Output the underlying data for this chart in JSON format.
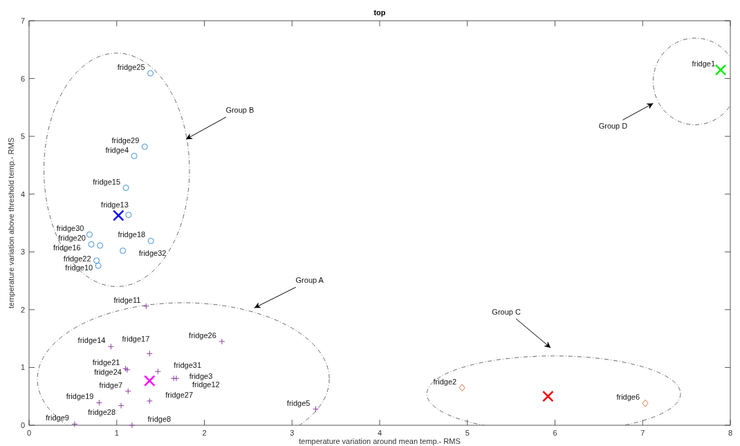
{
  "chart_data": {
    "type": "scatter",
    "title": "top",
    "xlabel": "temperature variation around mean temp.- RMS",
    "ylabel": "temperature variation above threshold temp.- RMS",
    "xlim": [
      0,
      8
    ],
    "xticks": [
      0,
      1,
      2,
      3,
      4,
      5,
      6,
      7,
      8
    ],
    "ylim": [
      0,
      7
    ],
    "yticks": [
      0,
      1,
      2,
      3,
      4,
      5,
      6,
      7
    ],
    "grid": false,
    "series": [
      {
        "color": "#3d8fd6",
        "marker": "circle",
        "x": [
          1.385,
          1.32,
          1.2,
          1.105,
          1.135,
          1.39,
          0.69,
          0.71,
          0.81,
          1.07,
          0.77,
          0.79
        ],
        "values": [
          6.09,
          4.82,
          4.66,
          4.11,
          3.64,
          3.19,
          3.3,
          3.13,
          3.11,
          3.02,
          2.85,
          2.76
        ]
      },
      {
        "color": "#8a3f9e",
        "marker": "cross",
        "x": [
          1.336,
          2.2,
          0.934,
          1.375,
          1.1,
          1.12,
          1.47,
          1.65,
          1.68,
          1.13,
          1.375,
          0.8,
          1.05,
          0.52,
          1.175,
          3.27
        ],
        "values": [
          2.06,
          1.45,
          1.36,
          1.24,
          0.98,
          0.96,
          0.93,
          0.81,
          0.81,
          0.59,
          0.42,
          0.39,
          0.34,
          0.02,
          0.0,
          0.28
        ]
      },
      {
        "color": "#e0724a",
        "marker": "diamond",
        "x": [
          4.94,
          7.03
        ],
        "values": [
          0.65,
          0.38
        ]
      },
      {
        "color": "#0000ff",
        "marker": "x",
        "x": [
          1.02
        ],
        "values": [
          3.63
        ]
      },
      {
        "color": "#ff00ff",
        "marker": "x",
        "x": [
          1.375
        ],
        "values": [
          0.77
        ]
      },
      {
        "color": "#ff0000",
        "marker": "x",
        "x": [
          5.92
        ],
        "values": [
          0.5
        ]
      },
      {
        "color": "#00ee00",
        "marker": "x",
        "x": [
          7.89
        ],
        "values": [
          6.15
        ]
      }
    ],
    "annotations": [
      {
        "text": "fridge25",
        "x": 1.385,
        "y": 6.09
      },
      {
        "text": "fridge29",
        "x": 1.32,
        "y": 4.82
      },
      {
        "text": "fridge4",
        "x": 1.2,
        "y": 4.66
      },
      {
        "text": "fridge15",
        "x": 1.105,
        "y": 4.11
      },
      {
        "text": "fridge13",
        "x": 1.135,
        "y": 3.64
      },
      {
        "text": "fridge18",
        "x": 1.39,
        "y": 3.19
      },
      {
        "text": "fridge30",
        "x": 0.69,
        "y": 3.3
      },
      {
        "text": "fridge20",
        "x": 0.71,
        "y": 3.13
      },
      {
        "text": "fridge16",
        "x": 0.81,
        "y": 3.11
      },
      {
        "text": "fridge32",
        "x": 1.07,
        "y": 3.02
      },
      {
        "text": "fridge22",
        "x": 0.77,
        "y": 2.85
      },
      {
        "text": "fridge10",
        "x": 0.79,
        "y": 2.76
      },
      {
        "text": "fridge11",
        "x": 1.336,
        "y": 2.06
      },
      {
        "text": "fridge26",
        "x": 2.2,
        "y": 1.45
      },
      {
        "text": "fridge14",
        "x": 0.934,
        "y": 1.36
      },
      {
        "text": "fridge17",
        "x": 1.375,
        "y": 1.24
      },
      {
        "text": "fridge21",
        "x": 1.1,
        "y": 0.98
      },
      {
        "text": "fridge24",
        "x": 1.12,
        "y": 0.96
      },
      {
        "text": "fridge31",
        "x": 1.47,
        "y": 0.93
      },
      {
        "text": "fridge3",
        "x": 1.65,
        "y": 0.81
      },
      {
        "text": "fridge12",
        "x": 1.68,
        "y": 0.81
      },
      {
        "text": "fridge7",
        "x": 1.13,
        "y": 0.59
      },
      {
        "text": "fridge27",
        "x": 1.375,
        "y": 0.42
      },
      {
        "text": "fridge19",
        "x": 0.8,
        "y": 0.39
      },
      {
        "text": "fridge28",
        "x": 1.05,
        "y": 0.34
      },
      {
        "text": "fridge9",
        "x": 0.52,
        "y": 0.02
      },
      {
        "text": "fridge8",
        "x": 1.175,
        "y": 0.0
      },
      {
        "text": "fridge5",
        "x": 3.27,
        "y": 0.28
      },
      {
        "text": "fridge2",
        "x": 4.94,
        "y": 0.65
      },
      {
        "text": "fridge6",
        "x": 7.03,
        "y": 0.38
      },
      {
        "text": "fridge1",
        "x": 7.89,
        "y": 6.15
      },
      "Group B",
      "Group A",
      "Group C",
      "Group D"
    ]
  }
}
